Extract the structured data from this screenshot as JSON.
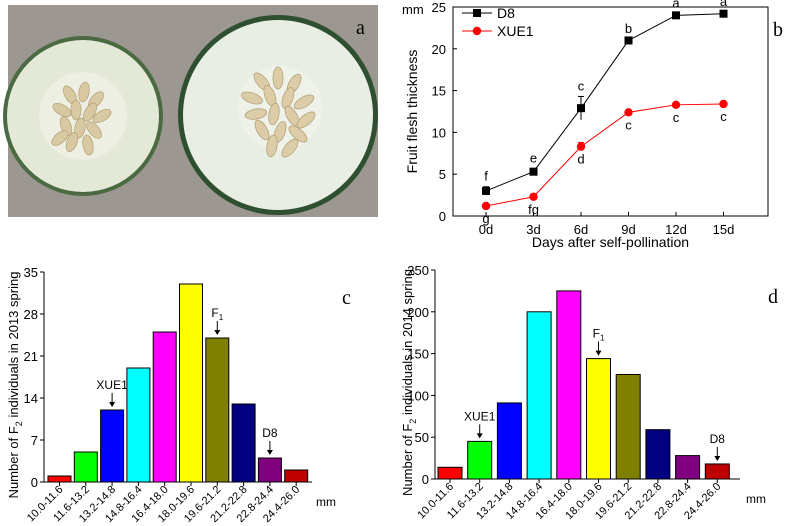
{
  "photo": {
    "panel_label": "a",
    "colors": {
      "background": "#9c9790",
      "rind": "#3b5f3a",
      "flesh": "#e9ede0",
      "seed": "#d8c8a4"
    }
  },
  "chart_data": [
    {
      "type": "line",
      "panel_label": "b",
      "x": [
        "0d",
        "3d",
        "6d",
        "9d",
        "12d",
        "15d"
      ],
      "xlabel": "Days after self-pollination",
      "ylabel": "Fruit flesh thickness",
      "unit": "mm",
      "ylim": [
        0,
        25
      ],
      "yticks": [
        "0",
        "5",
        "10",
        "15",
        "20",
        "25"
      ],
      "series": [
        {
          "name": "D8",
          "color": "#000000",
          "marker": "square",
          "values": [
            3.0,
            5.3,
            12.9,
            21.0,
            24.0,
            24.2
          ],
          "errors": [
            0.5,
            0.4,
            1.4,
            0.2,
            0.2,
            0.2
          ],
          "letters": [
            "f",
            "e",
            "c",
            "b",
            "a",
            "a"
          ]
        },
        {
          "name": "XUE1",
          "color": "#ff0000",
          "marker": "circle",
          "values": [
            1.2,
            2.3,
            8.3,
            12.4,
            13.3,
            13.4
          ],
          "errors": [
            0.3,
            0.3,
            0.5,
            0.2,
            0.2,
            0.2
          ],
          "letters": [
            "g",
            "fg",
            "d",
            "c",
            "c",
            "c"
          ]
        }
      ],
      "legend": "top-left"
    },
    {
      "type": "bar",
      "panel_label": "c",
      "ylabel_pre": "Number of F",
      "ylabel_sub": "2",
      "ylabel_post": " individuals in 2013 spring",
      "xunit": "mm",
      "ylim": [
        0,
        35
      ],
      "yticks": [
        "0",
        "7",
        "14",
        "21",
        "28",
        "35"
      ],
      "categories": [
        "10.0-11.6",
        "11.6-13.2",
        "13.2-14.8",
        "14.8-16.4",
        "16.4-18.0",
        "18.0-19.6",
        "19.6-21.2",
        "21.2-22.8",
        "22.8-24.4",
        "24.4-26.0"
      ],
      "values": [
        1,
        5,
        12,
        19,
        25,
        33,
        24,
        13,
        4,
        2
      ],
      "colors": [
        "#ff0000",
        "#00ff00",
        "#0000ff",
        "#00ffff",
        "#ff00ff",
        "#ffff00",
        "#808000",
        "#000080",
        "#800080",
        "#c00000"
      ],
      "annotations": [
        {
          "label": "XUE1",
          "index": 2
        },
        {
          "label": "F",
          "sub": "1",
          "index": 6
        },
        {
          "label": "D8",
          "index": 8
        }
      ]
    },
    {
      "type": "bar",
      "panel_label": "d",
      "ylabel_pre": "Number of F",
      "ylabel_sub": "2",
      "ylabel_post": " individuals in 2014 spring",
      "xunit": "mm",
      "ylim": [
        0,
        250
      ],
      "yticks": [
        "0",
        "50",
        "100",
        "150",
        "200",
        "250"
      ],
      "categories": [
        "10.0-11.6",
        "11.6-13.2",
        "13.2-14.8",
        "14.8-16.4",
        "16.4-18.0",
        "18.0-19.6",
        "19.6-21.2",
        "21.2-22.8",
        "22.8-24.4",
        "24.4-26.0"
      ],
      "values": [
        14,
        45,
        91,
        200,
        225,
        144,
        125,
        59,
        28,
        18
      ],
      "colors": [
        "#ff0000",
        "#00ff00",
        "#0000ff",
        "#00ffff",
        "#ff00ff",
        "#ffff00",
        "#808000",
        "#000080",
        "#800080",
        "#c00000"
      ],
      "annotations": [
        {
          "label": "XUE1",
          "index": 1
        },
        {
          "label": "F",
          "sub": "1",
          "index": 5
        },
        {
          "label": "D8",
          "index": 9
        }
      ]
    }
  ]
}
